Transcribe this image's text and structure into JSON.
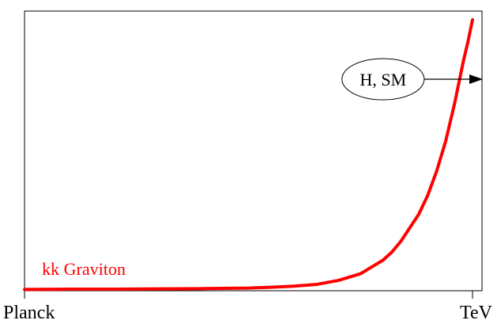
{
  "chart_data": {
    "type": "line",
    "title": "",
    "xlabel": "",
    "ylabel": "",
    "x_ticks": [
      {
        "label": "Planck",
        "x": 0
      },
      {
        "label": "TeV",
        "x": 1
      }
    ],
    "xlim": [
      0,
      1
    ],
    "ylim": [
      0,
      1
    ],
    "grid": false,
    "series": [
      {
        "name": "kk Graviton",
        "color": "#ff0000",
        "x": [
          0.0,
          0.1,
          0.2,
          0.3,
          0.4,
          0.5,
          0.55,
          0.6,
          0.65,
          0.7,
          0.75,
          0.78,
          0.8,
          0.82,
          0.84,
          0.86,
          0.88,
          0.9,
          0.92,
          0.94,
          0.95,
          0.96,
          0.97,
          0.98,
          0.99,
          1.0
        ],
        "y": [
          0.002,
          0.003,
          0.003,
          0.004,
          0.005,
          0.007,
          0.01,
          0.014,
          0.02,
          0.035,
          0.06,
          0.09,
          0.11,
          0.14,
          0.18,
          0.23,
          0.28,
          0.35,
          0.44,
          0.55,
          0.62,
          0.69,
          0.77,
          0.85,
          0.92,
          1.0
        ]
      }
    ],
    "annotations": [
      {
        "text": "H, SM",
        "shape": "ellipse",
        "arrow": "right"
      }
    ]
  }
}
